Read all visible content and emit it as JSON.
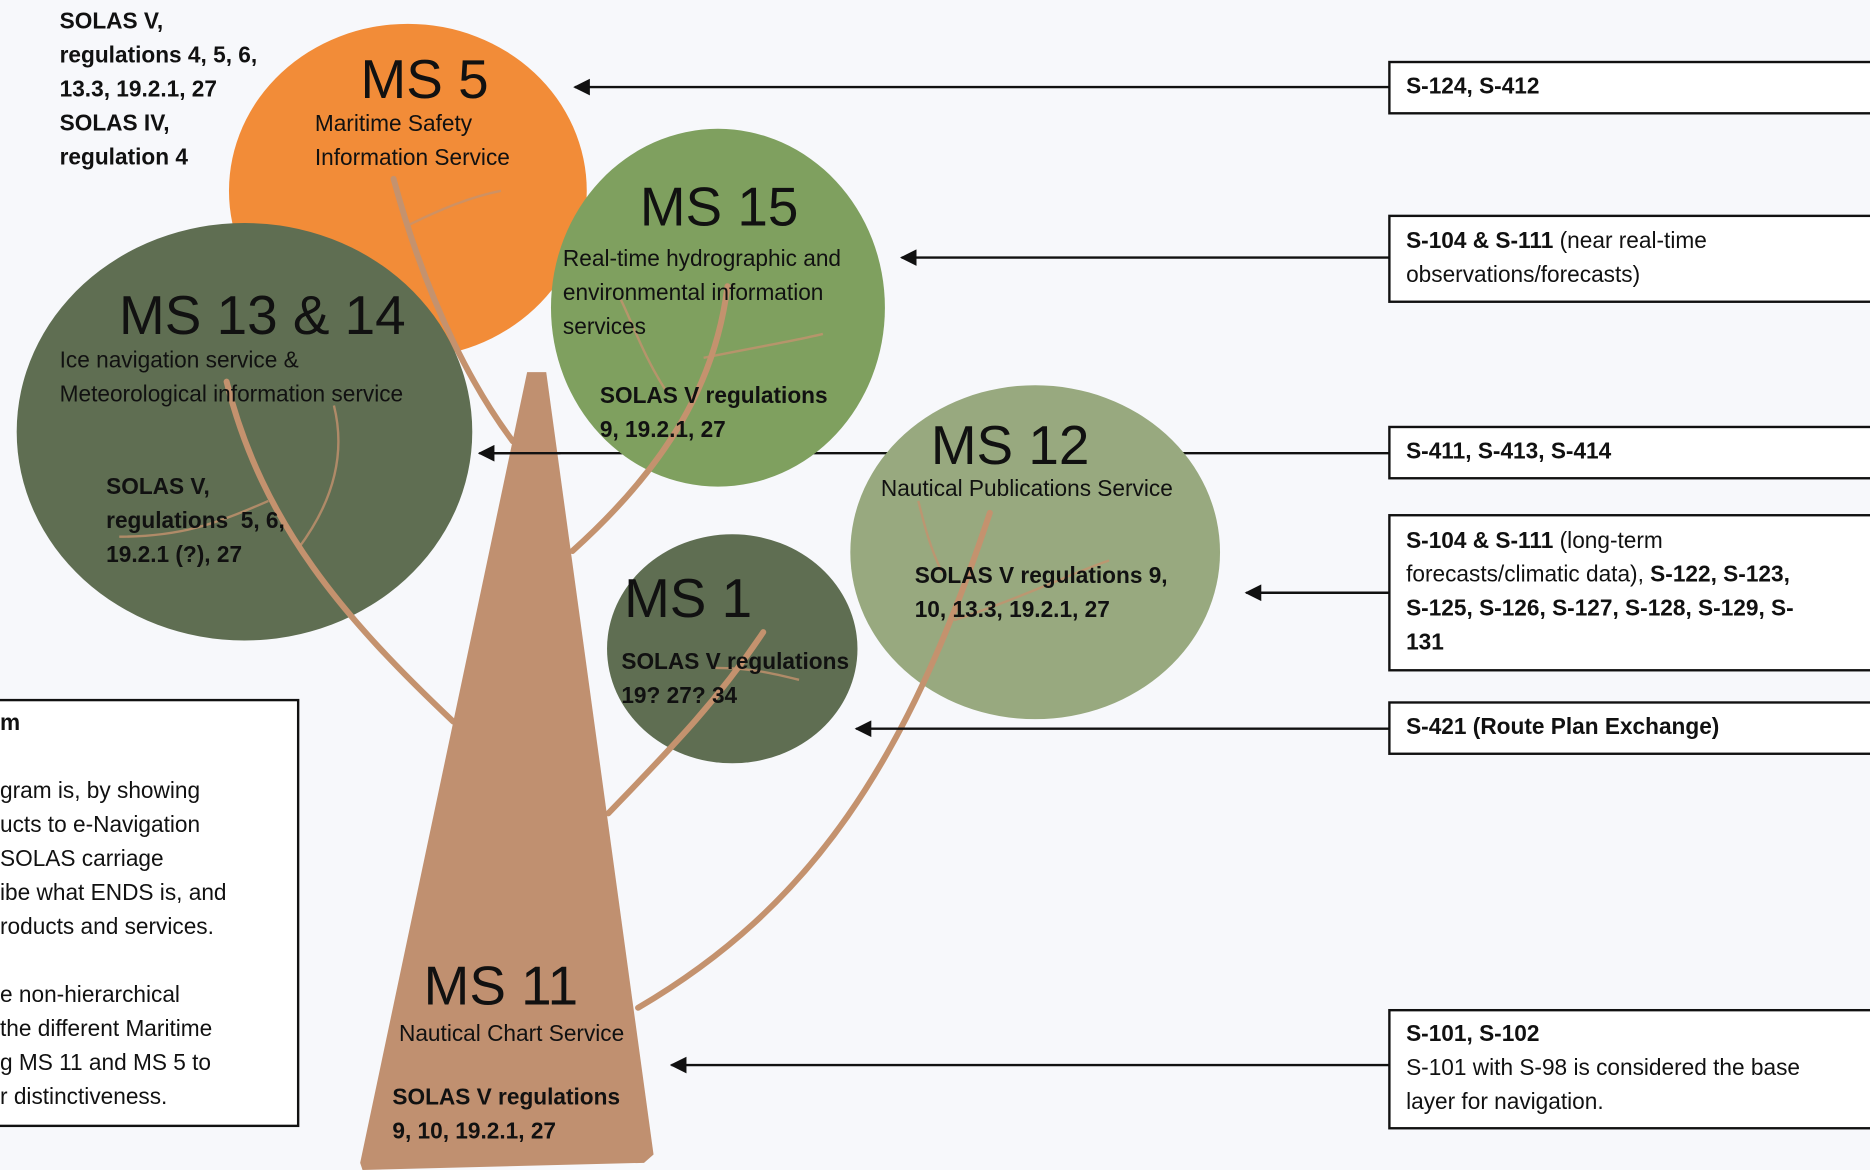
{
  "services": [
    {
      "title": "MS 5",
      "name_lines": [
        "Maritime Safety",
        "Information Service"
      ],
      "regulation_lines": [
        "SOLAS V,",
        "regulations 4, 5, 6,",
        "13.3, 19.2.1, 27",
        "SOLAS IV,",
        "regulation 4"
      ]
    },
    {
      "title": "MS 15",
      "name_lines": [
        "Real-time hydrographic and",
        "environmental information",
        "services"
      ],
      "regulation_lines": [
        "SOLAS V regulations",
        "9, 19.2.1, 27"
      ]
    },
    {
      "title": "MS 13 & 14",
      "name_lines": [
        "Ice navigation service &",
        "Meteorological information service"
      ],
      "regulation_lines": [
        "SOLAS V,",
        "regulations  5, 6,",
        "19.2.1 (?), 27"
      ]
    },
    {
      "title": "MS 12",
      "name_lines": [
        "Nautical Publications Service"
      ],
      "regulation_lines": [
        "SOLAS V regulations 9,",
        "10, 13.3, 19.2.1, 27"
      ]
    },
    {
      "title": "MS 1",
      "name_lines": [],
      "regulation_lines": [
        "SOLAS V regulations",
        "19? 27? 34"
      ]
    },
    {
      "title": "MS 11",
      "name_lines": [
        "Nautical Chart Service"
      ],
      "regulation_lines": [
        "SOLAS V regulations",
        "9, 10, 19.2.1, 27"
      ]
    }
  ],
  "product_boxes": [
    {
      "lines": [
        [
          {
            "text": "S-124, S-412",
            "bold": true
          }
        ]
      ]
    },
    {
      "lines": [
        [
          {
            "text": "S-104 & S-111",
            "bold": true
          },
          {
            "text": " (near real-time",
            "bold": false
          }
        ],
        [
          {
            "text": "observations/forecasts)",
            "bold": false
          }
        ]
      ]
    },
    {
      "lines": [
        [
          {
            "text": "S-411, S-413, S-414",
            "bold": true
          }
        ]
      ]
    },
    {
      "lines": [
        [
          {
            "text": "S-104 & S-111",
            "bold": true
          },
          {
            "text": " (long-term",
            "bold": false
          }
        ],
        [
          {
            "text": "forecasts/climatic data), ",
            "bold": false
          },
          {
            "text": "S-122, S-123,",
            "bold": true
          }
        ],
        [
          {
            "text": "S-125, S-126, S-127, S-128, S-129, S-",
            "bold": true
          }
        ],
        [
          {
            "text": "131",
            "bold": true
          }
        ]
      ]
    },
    {
      "lines": [
        [
          {
            "text": "S-421 (Route Plan Exchange)",
            "bold": true
          }
        ]
      ]
    },
    {
      "lines": [
        [
          {
            "text": "S-101, S-102",
            "bold": true
          }
        ],
        [
          {
            "text": "S-101 with S-98 is considered the base",
            "bold": false
          }
        ],
        [
          {
            "text": "layer for navigation.",
            "bold": false
          }
        ]
      ]
    }
  ],
  "note_box": {
    "title": "m",
    "paragraphs": [
      [
        "gram is, by showing",
        "ucts to e-Navigation",
        "SOLAS carriage",
        "ibe what ENDS is, and",
        "roducts and services."
      ],
      [
        "e non-hierarchical",
        "the different Maritime",
        "g MS 11 and MS 5 to",
        "r distinctiveness."
      ]
    ]
  }
}
